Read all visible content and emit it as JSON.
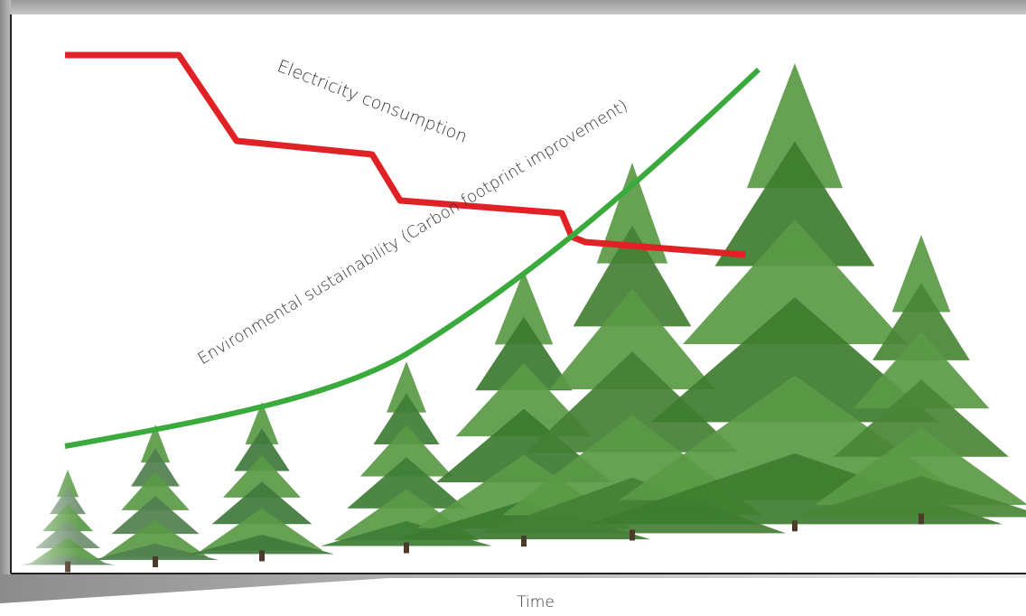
{
  "labels": {
    "electricity": "Electricity consumption",
    "sustainability": "Environmental sustainability (Carbon footprint improvement)",
    "x_axis": "Time"
  }
}
